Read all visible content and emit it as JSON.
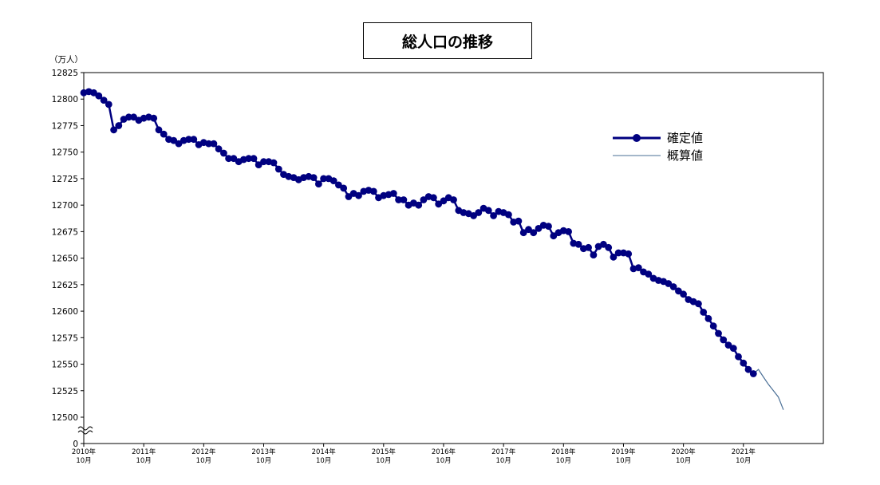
{
  "chart_data": {
    "type": "line",
    "title": "総人口の推移",
    "unit": "（万人）",
    "yticks": [
      12500,
      12525,
      12550,
      12575,
      12600,
      12625,
      12650,
      12675,
      12700,
      12725,
      12750,
      12775,
      12800,
      12825
    ],
    "y_zero_label": "0",
    "ylim": [
      12500,
      12825
    ],
    "y_axis_break": true,
    "xticks": [
      {
        "year": "2010年",
        "month": "10月"
      },
      {
        "year": "2011年",
        "month": "10月"
      },
      {
        "year": "2012年",
        "month": "10月"
      },
      {
        "year": "2013年",
        "month": "10月"
      },
      {
        "year": "2014年",
        "month": "10月"
      },
      {
        "year": "2015年",
        "month": "10月"
      },
      {
        "year": "2016年",
        "month": "10月"
      },
      {
        "year": "2017年",
        "month": "10月"
      },
      {
        "year": "2018年",
        "month": "10月"
      },
      {
        "year": "2019年",
        "month": "10月"
      },
      {
        "year": "2020年",
        "month": "10月"
      },
      {
        "year": "2021年",
        "month": "10月"
      }
    ],
    "x_start": "2010-10",
    "series": [
      {
        "name": "確定値",
        "color": "#000080",
        "marker": "circle",
        "values": [
          12806,
          12807,
          12806,
          12803,
          12799,
          12795,
          12771,
          12775,
          12781,
          12783,
          12783,
          12780,
          12782,
          12783,
          12782,
          12771,
          12767,
          12762,
          12761,
          12758,
          12761,
          12762,
          12762,
          12757,
          12759,
          12758,
          12758,
          12753,
          12749,
          12744,
          12744,
          12741,
          12743,
          12744,
          12744,
          12738,
          12741,
          12741,
          12740,
          12734,
          12729,
          12727,
          12726,
          12724,
          12726,
          12727,
          12726,
          12720,
          12725,
          12725,
          12723,
          12719,
          12716,
          12708,
          12711,
          12709,
          12713,
          12714,
          12713,
          12707,
          12709,
          12710,
          12711,
          12705,
          12705,
          12700,
          12702,
          12700,
          12705,
          12708,
          12707,
          12701,
          12704,
          12707,
          12705,
          12695,
          12693,
          12692,
          12690,
          12693,
          12697,
          12695,
          12690,
          12694,
          12693,
          12691,
          12684,
          12685,
          12674,
          12677,
          12674,
          12678,
          12681,
          12680,
          12671,
          12674,
          12676,
          12675,
          12664,
          12663,
          12659,
          12660,
          12653,
          12661,
          12663,
          12660,
          12651,
          12655,
          12655,
          12654,
          12640,
          12641,
          12637,
          12635,
          12631,
          12629,
          12628,
          12626,
          12623,
          12619,
          12616,
          12611,
          12609,
          12607,
          12599,
          12593,
          12586,
          12579,
          12573,
          12568,
          12565,
          12557,
          12551,
          12545,
          12541
        ]
      },
      {
        "name": "概算値",
        "color": "#4a6f96",
        "marker": "none",
        "start_index": 134,
        "values": [
          12541,
          12545,
          12538,
          12531,
          12525,
          12519,
          12507
        ]
      }
    ],
    "legend_position": "top-right",
    "grid": false
  }
}
